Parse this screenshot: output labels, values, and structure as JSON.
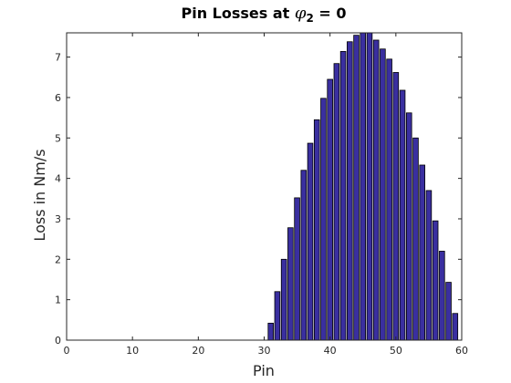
{
  "chart_data": {
    "type": "bar",
    "title": {
      "prefix": "Pin Losses at ",
      "symbol": "φ",
      "subscript": "2",
      "suffix": " = 0"
    },
    "xlabel": "Pin",
    "ylabel": "Loss in Nm/s",
    "xlim": [
      0,
      60
    ],
    "ylim": [
      0,
      7.6
    ],
    "xticks": [
      0,
      10,
      20,
      30,
      40,
      50,
      60
    ],
    "yticks": [
      0,
      1,
      2,
      3,
      4,
      5,
      6,
      7
    ],
    "grid": false,
    "bar_color": "#3a2fa0",
    "x": [
      31,
      32,
      33,
      34,
      35,
      36,
      37,
      38,
      39,
      40,
      41,
      42,
      43,
      44,
      45,
      46,
      47,
      48,
      49,
      50,
      51,
      52,
      53,
      54,
      55,
      56,
      57,
      58,
      59
    ],
    "values": [
      0.42,
      1.2,
      2.0,
      2.78,
      3.52,
      4.2,
      4.87,
      5.45,
      5.98,
      6.45,
      6.84,
      7.14,
      7.38,
      7.54,
      7.6,
      7.6,
      7.42,
      7.2,
      6.95,
      6.62,
      6.18,
      5.62,
      5.0,
      4.33,
      3.7,
      2.95,
      2.2,
      1.43,
      0.66
    ]
  }
}
